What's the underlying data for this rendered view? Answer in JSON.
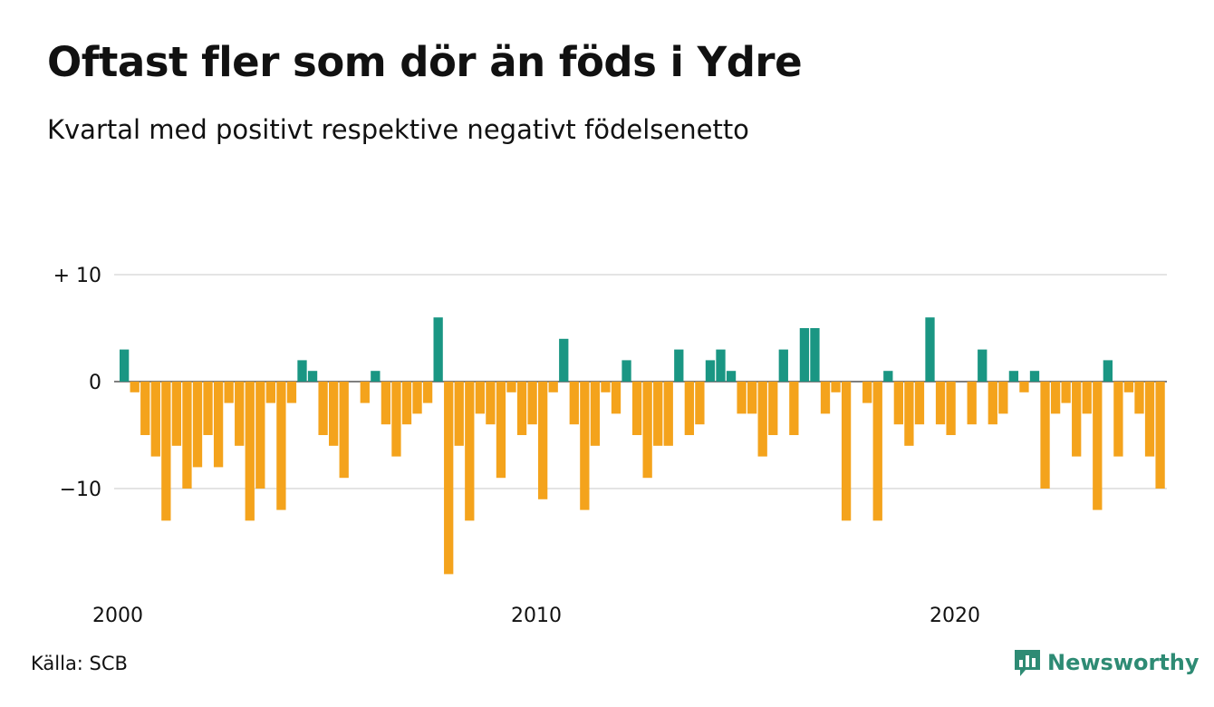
{
  "title": "Oftast fler som dör än föds i Ydre",
  "subtitle": "Kvartal med positivt respektive negativt födelsenetto",
  "source": "Källa: SCB",
  "brand": {
    "name": "Newsworthy",
    "icon": "bar-chart-speech-bubble-icon"
  },
  "colors": {
    "positive": "#1a9683",
    "negative": "#f4a31c",
    "grid": "#e4e4e4",
    "text": "#111111",
    "brand": "#2e8b74"
  },
  "chart_data": {
    "type": "bar",
    "title": "Oftast fler som dör än föds i Ydre",
    "subtitle": "Kvartal med positivt respektive negativt födelsenetto",
    "x_start": "2000 Q1",
    "x_ticks": [
      "2000",
      "2010",
      "2020"
    ],
    "y_ticks": [
      {
        "value": 10,
        "label": "+ 10"
      },
      {
        "value": 0,
        "label": "0"
      },
      {
        "value": -10,
        "label": "−10"
      }
    ],
    "ylim": [
      -19,
      10
    ],
    "grid": true,
    "values": [
      3,
      -1,
      -5,
      -7,
      -13,
      -6,
      -10,
      -8,
      -5,
      -8,
      -2,
      -6,
      -13,
      -10,
      -2,
      -12,
      -2,
      2,
      1,
      -5,
      -6,
      -9,
      0,
      -2,
      1,
      -4,
      -7,
      -4,
      -3,
      -2,
      6,
      -18,
      -6,
      -13,
      -3,
      -4,
      -9,
      -1,
      -5,
      -4,
      -11,
      -1,
      4,
      -4,
      -12,
      -6,
      -1,
      -3,
      2,
      -5,
      -9,
      -6,
      -6,
      3,
      -5,
      -4,
      2,
      3,
      1,
      -3,
      -3,
      -7,
      -5,
      3,
      -5,
      5,
      5,
      -3,
      -1,
      -13,
      0,
      -2,
      -13,
      1,
      -4,
      -6,
      -4,
      6,
      -4,
      -5,
      0,
      -4,
      3,
      -4,
      -3,
      1,
      -1,
      1,
      -10,
      -3,
      -2,
      -7,
      -3,
      -12,
      2,
      -7,
      -1,
      -3,
      -7,
      -10
    ]
  }
}
